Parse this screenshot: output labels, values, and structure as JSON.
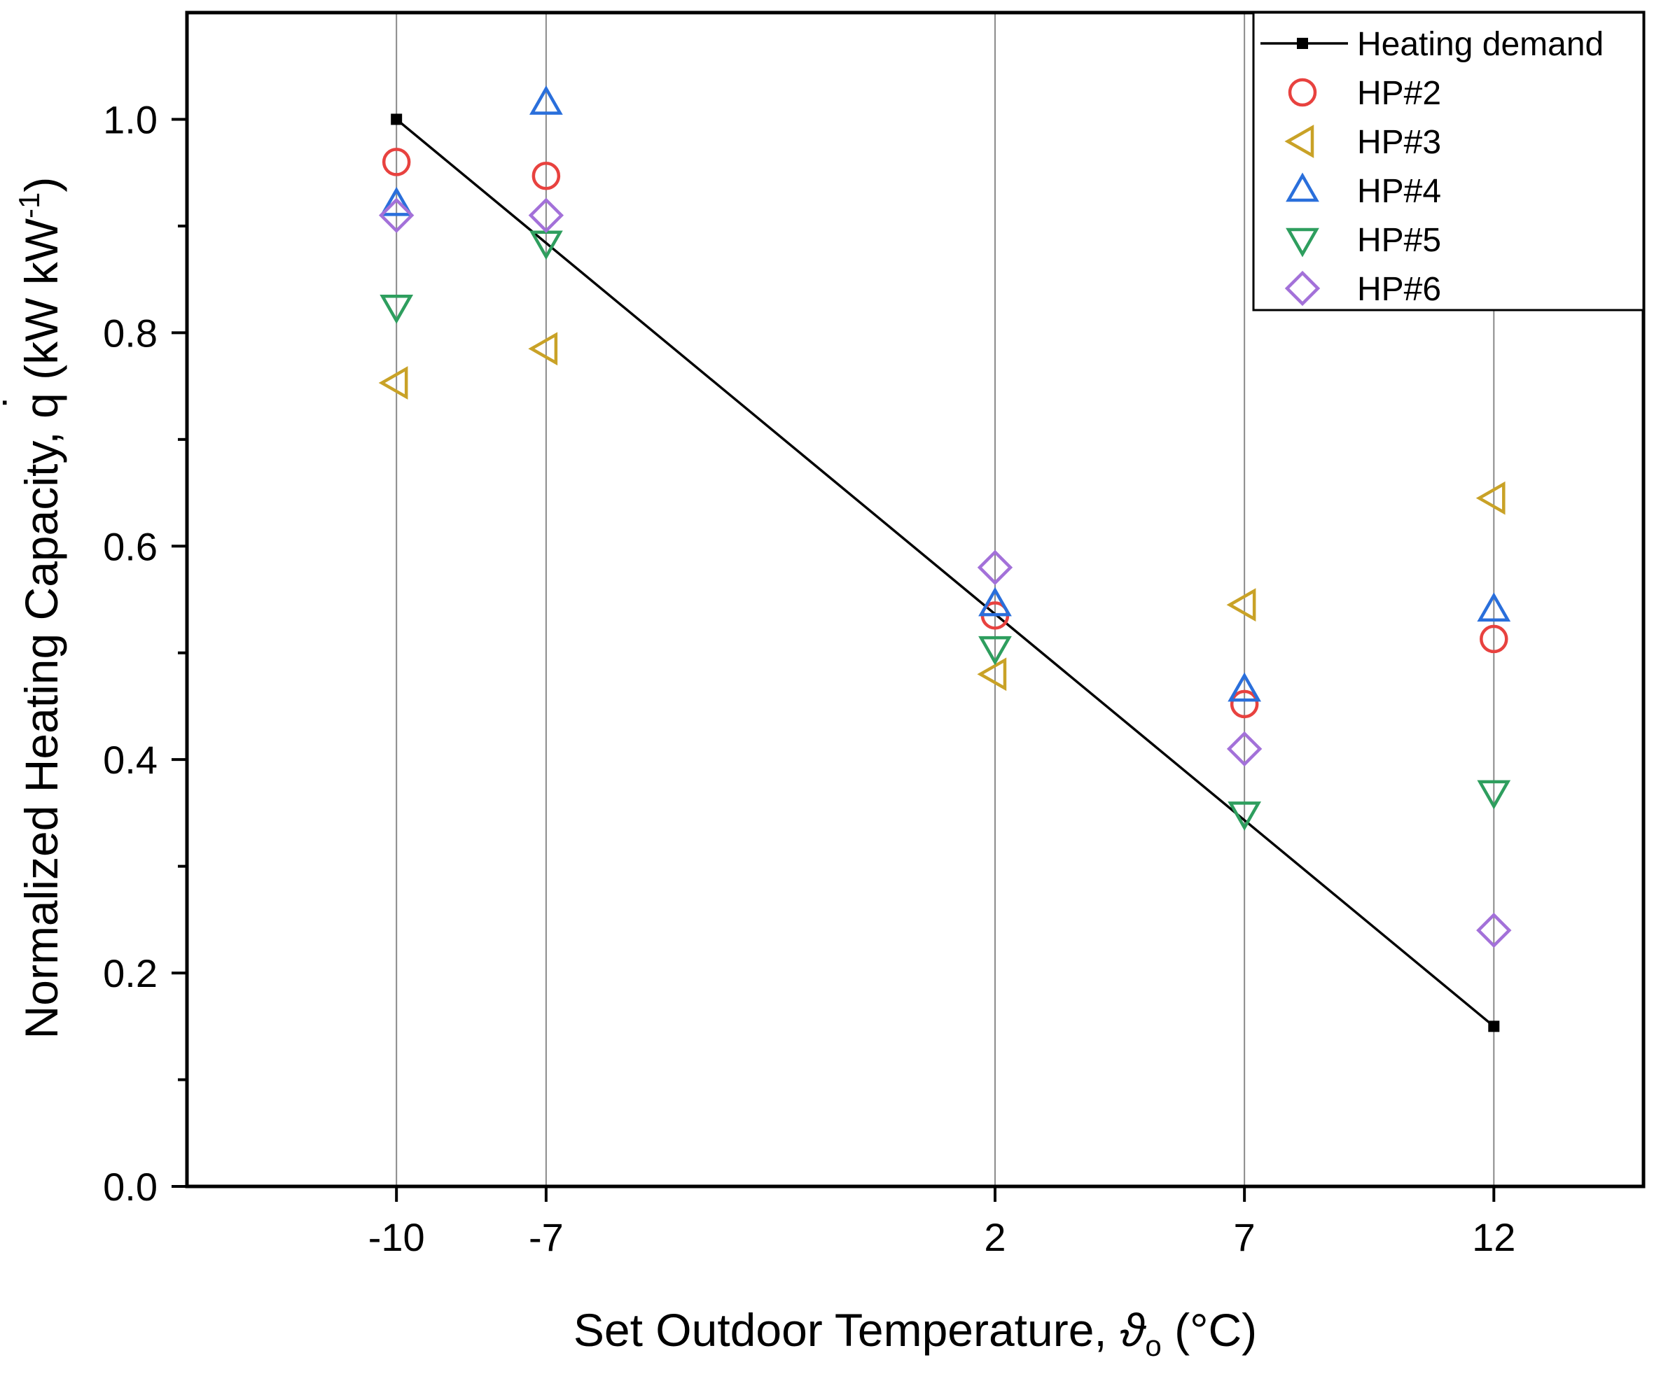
{
  "chart_data": {
    "type": "scatter",
    "title": "",
    "xlabel": {
      "main": "Set Outdoor Temperature, ",
      "symbol": "ϑ",
      "subscript": "o",
      "unit": " (°C)"
    },
    "ylabel": {
      "main": "Normalized Heating Capacity, ",
      "symbol": "q",
      "dot": "˙",
      "unit_open": " (kW kW",
      "superscript": "-1",
      "unit_close": ")"
    },
    "xlim": [
      -14.2,
      15.0
    ],
    "ylim": [
      0.0,
      1.1
    ],
    "x_ticks": [
      -10,
      -7,
      2,
      7,
      12
    ],
    "x_tick_labels": [
      "-10",
      "-7",
      "2",
      "7",
      "12"
    ],
    "y_ticks": [
      0.0,
      0.2,
      0.4,
      0.6,
      0.8,
      1.0
    ],
    "y_tick_labels": [
      "0.0",
      "0.2",
      "0.4",
      "0.6",
      "0.8",
      "1.0"
    ],
    "y_minor_ticks": [
      0.1,
      0.3,
      0.5,
      0.7,
      0.9
    ],
    "grid": "vertical lines at x ticks",
    "legend_position": "top-right",
    "series": [
      {
        "name": "Heating demand",
        "kind": "line",
        "marker": "square",
        "color": "#000000",
        "x": [
          -10,
          12
        ],
        "y": [
          1.0,
          0.15
        ]
      },
      {
        "name": "HP#2",
        "kind": "scatter",
        "marker": "circle",
        "color": "#e8423f",
        "x": [
          -10,
          -7,
          2,
          7,
          12
        ],
        "y": [
          0.96,
          0.947,
          0.535,
          0.452,
          0.513
        ]
      },
      {
        "name": "HP#3",
        "kind": "scatter",
        "marker": "triangle-left",
        "color": "#c9a227",
        "x": [
          -10,
          -7,
          2,
          7,
          12
        ],
        "y": [
          0.753,
          0.785,
          0.48,
          0.545,
          0.645
        ]
      },
      {
        "name": "HP#4",
        "kind": "scatter",
        "marker": "triangle-up",
        "color": "#2a6fdb",
        "x": [
          -10,
          -7,
          2,
          7,
          12
        ],
        "y": [
          0.92,
          1.015,
          0.545,
          0.465,
          0.54
        ]
      },
      {
        "name": "HP#5",
        "kind": "scatter",
        "marker": "triangle-down",
        "color": "#2e9e5e",
        "x": [
          -10,
          -7,
          2,
          7,
          12
        ],
        "y": [
          0.825,
          0.885,
          0.505,
          0.35,
          0.37
        ]
      },
      {
        "name": "HP#6",
        "kind": "scatter",
        "marker": "diamond",
        "color": "#a371d9",
        "x": [
          -10,
          -7,
          2,
          7,
          12
        ],
        "y": [
          0.91,
          0.91,
          0.58,
          0.41,
          0.24
        ]
      }
    ]
  }
}
